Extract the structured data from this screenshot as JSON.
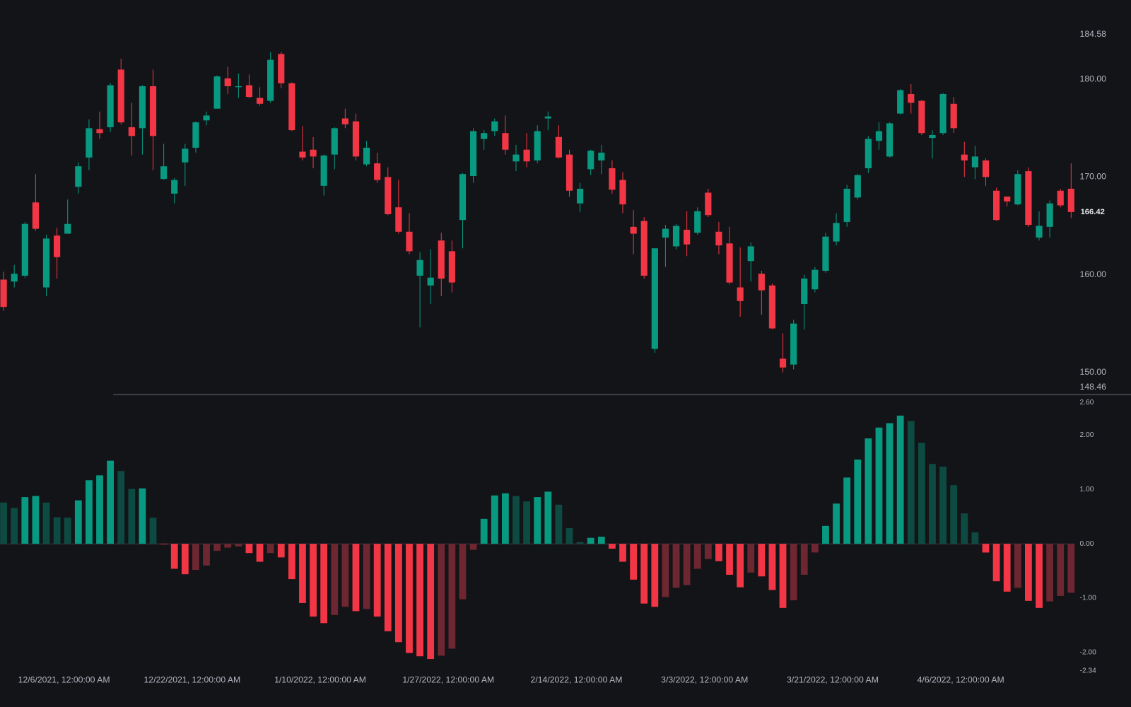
{
  "chart_data": [
    {
      "type": "candlestick",
      "up_color": "#089981",
      "down_color": "#f23645",
      "ylim": [
        148.46,
        184.58
      ],
      "yticks": [
        184.58,
        {
          "value": 180,
          "label": "180.00"
        },
        {
          "value": 170,
          "label": "170.00"
        },
        {
          "value": 160,
          "label": "160.00"
        },
        {
          "value": 150,
          "label": "150.00"
        },
        148.46
      ],
      "last_price": 166.42,
      "open": [
        159.5,
        159.3,
        159.9,
        167.4,
        158.7,
        164.0,
        164.2,
        169.0,
        172.0,
        174.9,
        175.1,
        181.0,
        175.1,
        175.0,
        179.3,
        169.8,
        168.3,
        171.5,
        173.0,
        175.8,
        177.0,
        180.1,
        179.2,
        179.4,
        178.1,
        177.8,
        182.6,
        179.6,
        172.6,
        172.8,
        169.1,
        172.3,
        176.0,
        175.7,
        171.3,
        171.4,
        170.0,
        166.9,
        164.4,
        159.9,
        158.9,
        163.5,
        162.4,
        165.6,
        170.1,
        173.9,
        174.7,
        174.5,
        171.6,
        172.8,
        171.7,
        176.0,
        174.1,
        172.3,
        167.3,
        170.8,
        171.7,
        170.9,
        169.7,
        164.9,
        165.5,
        152.4,
        163.8,
        162.9,
        164.6,
        164.3,
        168.4,
        164.4,
        163.2,
        158.7,
        161.4,
        160.1,
        158.9,
        151.4,
        150.8,
        157.0,
        158.5,
        160.4,
        163.4,
        165.4,
        167.9,
        170.9,
        173.7,
        172.1,
        176.5,
        178.5,
        177.8,
        174.0,
        174.5,
        177.5,
        172.3,
        171.0,
        171.7,
        168.6,
        168.0,
        167.2,
        170.6,
        163.8,
        164.9,
        168.6,
        168.8
      ],
      "high": [
        160.3,
        161.0,
        165.4,
        170.3,
        164.1,
        164.8,
        167.7,
        171.5,
        175.9,
        176.7,
        179.6,
        182.1,
        177.6,
        179.4,
        181.0,
        173.4,
        169.9,
        173.4,
        175.7,
        176.7,
        180.4,
        181.3,
        180.6,
        180.5,
        179.2,
        182.8,
        182.8,
        179.7,
        175.2,
        174.1,
        172.3,
        175.1,
        177.0,
        176.5,
        173.7,
        172.5,
        171.0,
        169.7,
        166.3,
        162.3,
        162.6,
        164.3,
        163.5,
        170.4,
        175.0,
        174.8,
        176.0,
        176.3,
        173.3,
        174.5,
        175.3,
        176.7,
        175.3,
        172.8,
        169.4,
        172.8,
        173.3,
        171.7,
        170.5,
        166.6,
        165.9,
        162.7,
        165.1,
        165.2,
        166.5,
        166.9,
        168.8,
        165.4,
        164.9,
        162.8,
        163.3,
        160.4,
        159.1,
        154.0,
        155.4,
        160.0,
        160.8,
        164.3,
        166.3,
        169.2,
        170.3,
        174.2,
        175.6,
        175.6,
        179.0,
        179.5,
        177.9,
        174.8,
        178.6,
        178.2,
        173.6,
        173.2,
        171.9,
        168.9,
        168.0,
        170.7,
        171.0,
        166.5,
        167.6,
        168.8,
        171.4
      ],
      "low": [
        156.3,
        158.7,
        159.7,
        164.5,
        157.8,
        159.6,
        164.2,
        168.3,
        170.7,
        173.9,
        174.6,
        175.4,
        172.2,
        172.3,
        170.7,
        169.7,
        167.3,
        169.1,
        172.5,
        175.3,
        177.0,
        178.5,
        178.1,
        178.1,
        177.3,
        177.6,
        179.1,
        174.7,
        171.7,
        170.9,
        168.1,
        170.8,
        175.0,
        171.7,
        171.1,
        169.4,
        166.1,
        164.2,
        162.1,
        154.6,
        157.0,
        157.8,
        158.2,
        162.7,
        169.4,
        172.8,
        174.2,
        172.3,
        170.6,
        171.0,
        171.4,
        174.8,
        171.9,
        168.0,
        166.4,
        170.2,
        170.3,
        168.3,
        166.3,
        162.1,
        159.6,
        152.0,
        160.8,
        162.6,
        161.9,
        164.1,
        165.9,
        162.1,
        159.0,
        155.7,
        159.3,
        155.9,
        154.4,
        150.0,
        150.3,
        154.4,
        158.2,
        160.2,
        163.0,
        164.9,
        167.7,
        170.4,
        172.8,
        172.0,
        176.4,
        176.5,
        174.3,
        171.9,
        174.3,
        174.5,
        170.0,
        169.8,
        169.1,
        165.5,
        167.0,
        167.1,
        164.9,
        163.5,
        163.8,
        166.9,
        165.8
      ],
      "close": [
        156.7,
        160.1,
        165.2,
        164.7,
        163.7,
        161.8,
        165.2,
        171.1,
        175.0,
        174.5,
        179.4,
        175.6,
        174.2,
        179.3,
        174.2,
        171.1,
        169.7,
        172.9,
        175.6,
        176.3,
        180.3,
        179.3,
        179.3,
        178.2,
        177.5,
        182.0,
        179.6,
        174.8,
        172.0,
        172.1,
        172.2,
        175.0,
        175.4,
        172.1,
        173.0,
        169.7,
        166.2,
        164.4,
        162.4,
        161.5,
        159.7,
        159.6,
        159.2,
        170.3,
        174.7,
        174.5,
        175.7,
        172.8,
        172.3,
        171.6,
        174.7,
        176.2,
        172.0,
        168.6,
        168.8,
        172.7,
        172.5,
        168.7,
        167.2,
        164.2,
        159.9,
        162.7,
        164.7,
        165.0,
        163.1,
        166.5,
        166.1,
        163.0,
        159.2,
        157.3,
        162.9,
        158.4,
        154.5,
        150.5,
        155.0,
        159.6,
        160.5,
        163.9,
        165.3,
        168.8,
        170.2,
        173.9,
        174.7,
        175.5,
        178.9,
        177.6,
        174.5,
        174.3,
        178.5,
        175.0,
        171.7,
        172.1,
        170.0,
        165.6,
        167.5,
        170.3,
        165.1,
        165.0,
        167.3,
        167.1,
        166.42
      ]
    },
    {
      "type": "histogram_bar",
      "colors": {
        "up_strong": "#089981",
        "up_weak": "#0d4a41",
        "down_strong": "#f23645",
        "down_weak": "#6e2630"
      },
      "ylim": [
        -2.34,
        2.6
      ],
      "yticks": [
        {
          "value": 2.6,
          "label": "2.60"
        },
        {
          "value": 2,
          "label": "2.00"
        },
        {
          "value": 1,
          "label": "1.00"
        },
        {
          "value": 0,
          "label": "0.00"
        },
        {
          "value": -1,
          "label": "-1.00"
        },
        {
          "value": -2,
          "label": "-2.00"
        },
        -2.34
      ],
      "categories": [
        null,
        null,
        null,
        null,
        null,
        null,
        "12/6/2021, 12:00:00 AM",
        null,
        null,
        null,
        null,
        null,
        null,
        null,
        null,
        null,
        null,
        null,
        "12/22/2021, 12:00:00 AM",
        null,
        null,
        null,
        null,
        null,
        null,
        null,
        null,
        null,
        null,
        null,
        "1/10/2022, 12:00:00 AM",
        null,
        null,
        null,
        null,
        null,
        null,
        null,
        null,
        null,
        null,
        null,
        "1/27/2022, 12:00:00 AM",
        null,
        null,
        null,
        null,
        null,
        null,
        null,
        null,
        null,
        null,
        null,
        "2/14/2022, 12:00:00 AM",
        null,
        null,
        null,
        null,
        null,
        null,
        null,
        null,
        null,
        null,
        null,
        "3/3/2022, 12:00:00 AM",
        null,
        null,
        null,
        null,
        null,
        null,
        null,
        null,
        null,
        null,
        null,
        "3/21/2022, 12:00:00 AM",
        null,
        null,
        null,
        null,
        null,
        null,
        null,
        null,
        null,
        null,
        null,
        "4/6/2022, 12:00:00 AM",
        null,
        null,
        null,
        null,
        null,
        null,
        null,
        null,
        null,
        null
      ],
      "values": [
        0.76,
        0.66,
        0.86,
        0.88,
        0.76,
        0.49,
        0.48,
        0.8,
        1.17,
        1.26,
        1.53,
        1.34,
        1.01,
        1.02,
        0.48,
        -0.01,
        -0.46,
        -0.56,
        -0.48,
        -0.4,
        -0.13,
        -0.07,
        -0.05,
        -0.17,
        -0.33,
        -0.17,
        -0.25,
        -0.65,
        -1.09,
        -1.34,
        -1.46,
        -1.31,
        -1.16,
        -1.24,
        -1.2,
        -1.34,
        -1.61,
        -1.81,
        -2.01,
        -2.07,
        -2.12,
        -2.06,
        -1.93,
        -1.02,
        -0.11,
        0.46,
        0.89,
        0.93,
        0.88,
        0.78,
        0.86,
        0.96,
        0.72,
        0.29,
        0.03,
        0.11,
        0.13,
        -0.09,
        -0.33,
        -0.66,
        -1.1,
        -1.16,
        -0.98,
        -0.81,
        -0.76,
        -0.46,
        -0.28,
        -0.32,
        -0.57,
        -0.8,
        -0.53,
        -0.6,
        -0.85,
        -1.18,
        -1.04,
        -0.57,
        -0.16,
        0.33,
        0.74,
        1.22,
        1.55,
        1.94,
        2.14,
        2.22,
        2.36,
        2.26,
        1.86,
        1.47,
        1.42,
        1.08,
        0.56,
        0.21,
        -0.16,
        -0.69,
        -0.88,
        -0.81,
        -1.05,
        -1.18,
        -1.06,
        -0.96,
        -0.9
      ]
    }
  ]
}
